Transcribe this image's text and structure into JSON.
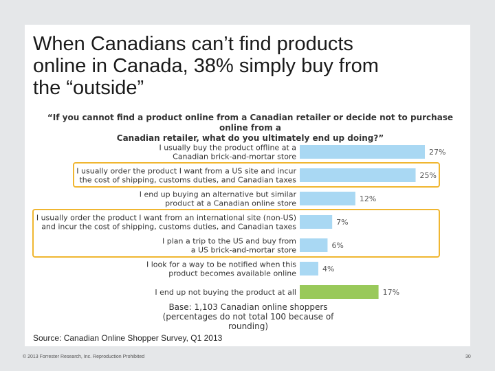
{
  "slide": {
    "title_lines": [
      "When Canadians can’t find products",
      "online in Canada, 38% simply buy from",
      "the “outside”"
    ],
    "source": "Source: Canadian Online Shopper Survey, Q1 2013",
    "footer_left": "© 2013 Forrester Research, Inc. Reproduction Prohibited",
    "page_number": "30"
  },
  "chart_data": {
    "type": "bar",
    "orientation": "horizontal",
    "title_lines": [
      "“If you cannot find a product online from a Canadian retailer or decide not to purchase online from a",
      "Canadian retailer, what do you ultimately end up doing?”"
    ],
    "categories": [
      [
        "I usually buy the product offline at a",
        "Canadian brick-and-mortar store"
      ],
      [
        "I usually order the product I want from a US site and incur",
        "the cost of shipping, customs duties, and Canadian taxes"
      ],
      [
        "I end up buying an alternative but similar",
        "product at a Canadian online store"
      ],
      [
        "I usually order the product I want from an international site (non-US)",
        "and incur the cost of shipping, customs duties, and Canadian taxes"
      ],
      [
        "I plan a trip to the US and buy from",
        "a US brick-and-mortar store"
      ],
      [
        "I look for a way to be notified when this",
        "product becomes available online"
      ],
      [
        "I end up not buying the product at all"
      ]
    ],
    "values": [
      27,
      25,
      12,
      7,
      6,
      4,
      17
    ],
    "value_labels": [
      "27%",
      "25%",
      "12%",
      "7%",
      "6%",
      "4%",
      "17%"
    ],
    "bar_colors": [
      "#a9d8f3",
      "#a9d8f3",
      "#a9d8f3",
      "#a9d8f3",
      "#a9d8f3",
      "#a9d8f3",
      "#99c95a"
    ],
    "highlight_color": "#f0b630",
    "highlight_groups": [
      [
        1
      ],
      [
        3,
        4
      ]
    ],
    "base_lines": [
      "Base: 1,103 Canadian online shoppers",
      "(percentages do not total 100 because of rounding)"
    ],
    "xlim": [
      0,
      27
    ]
  }
}
